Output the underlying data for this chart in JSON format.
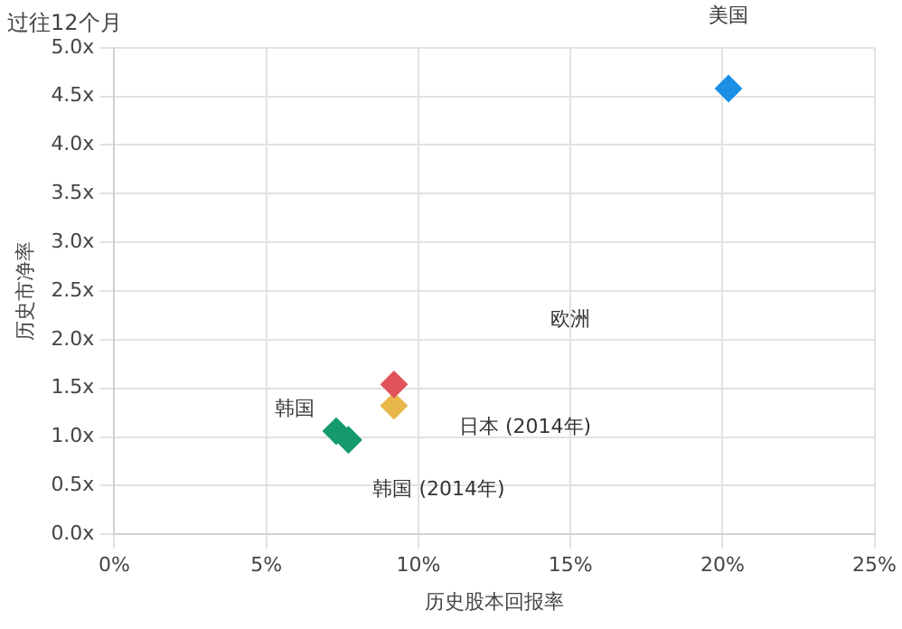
{
  "chart_data": {
    "type": "scatter",
    "title": "过往12个月",
    "xlabel": "历史股本回报率",
    "ylabel": "历史市净率",
    "marker": "diamond",
    "grid": true,
    "legend": false,
    "xlim": [
      0,
      25
    ],
    "xticks": [
      {
        "value": 0,
        "label": "0%"
      },
      {
        "value": 5,
        "label": "5%"
      },
      {
        "value": 10,
        "label": "10%"
      },
      {
        "value": 15,
        "label": "15%"
      },
      {
        "value": 20,
        "label": "20%"
      },
      {
        "value": 25,
        "label": "25%"
      }
    ],
    "ylim": [
      0,
      5
    ],
    "yticks": [
      {
        "value": 0,
        "label": "0.0x"
      },
      {
        "value": 0.5,
        "label": "0.5x"
      },
      {
        "value": 1,
        "label": "1.0x"
      },
      {
        "value": 1.5,
        "label": "1.5x"
      },
      {
        "value": 2,
        "label": "2.0x"
      },
      {
        "value": 2.5,
        "label": "2.5x"
      },
      {
        "value": 3,
        "label": "3.0x"
      },
      {
        "value": 3.5,
        "label": "3.5x"
      },
      {
        "value": 4,
        "label": "4.0x"
      },
      {
        "value": 4.5,
        "label": "4.5x"
      },
      {
        "value": 5,
        "label": "5.0x"
      }
    ],
    "series": [
      {
        "name": "美国",
        "color": "#1a8fe3",
        "x": [
          20.2
        ],
        "values": [
          4.58
        ]
      },
      {
        "color": "#e0525a",
        "x": [
          9.2
        ],
        "values": [
          1.54
        ]
      },
      {
        "name": "日本 (2014年)",
        "color": "#e8b74a",
        "x": [
          9.2
        ],
        "values": [
          1.32
        ]
      },
      {
        "name": "韩国",
        "color": "#159a6e",
        "x": [
          7.3
        ],
        "values": [
          1.06
        ]
      },
      {
        "name": "韩国 (2014年)",
        "color": "#159a6e",
        "x": [
          7.7
        ],
        "values": [
          0.97
        ]
      }
    ],
    "annotations": [
      "欧洲"
    ]
  }
}
